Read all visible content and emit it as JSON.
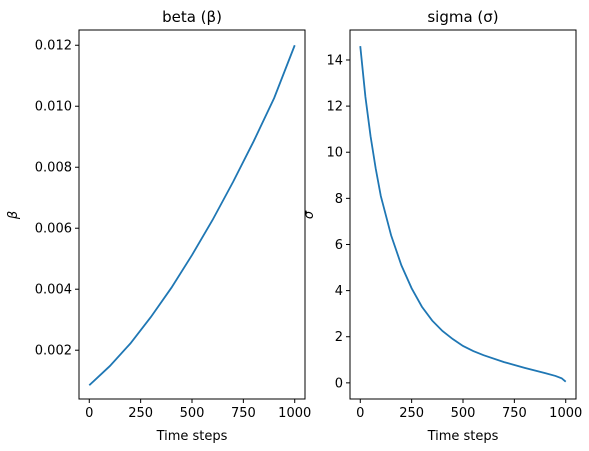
{
  "chart_data": [
    {
      "type": "line",
      "title": "beta (β)",
      "xlabel": "Time steps",
      "ylabel": "β",
      "xlim": [
        -50,
        1050
      ],
      "ylim": [
        0.0004,
        0.0125
      ],
      "xticks": [
        0,
        250,
        500,
        750,
        1000
      ],
      "xtick_labels": [
        "0",
        "250",
        "500",
        "750",
        "1000"
      ],
      "yticks": [
        0.002,
        0.004,
        0.006,
        0.008,
        0.01,
        0.012
      ],
      "ytick_labels": [
        "0.002",
        "0.004",
        "0.006",
        "0.008",
        "0.010",
        "0.012"
      ],
      "grid": false,
      "color": "#1f77b4",
      "series": [
        {
          "x": [
            0,
            100,
            200,
            300,
            400,
            500,
            600,
            700,
            800,
            900,
            1000
          ],
          "y": [
            0.00085,
            0.00148,
            0.00222,
            0.00309,
            0.00405,
            0.00512,
            0.00627,
            0.00752,
            0.00885,
            0.01027,
            0.012
          ]
        }
      ]
    },
    {
      "type": "line",
      "title": "sigma (σ)",
      "xlabel": "Time steps",
      "ylabel": "σ",
      "xlim": [
        -50,
        1050
      ],
      "ylim": [
        -0.7,
        15.3
      ],
      "xticks": [
        0,
        250,
        500,
        750,
        1000
      ],
      "xtick_labels": [
        "0",
        "250",
        "500",
        "750",
        "1000"
      ],
      "yticks": [
        0,
        2,
        4,
        6,
        8,
        10,
        12,
        14
      ],
      "ytick_labels": [
        "0",
        "2",
        "4",
        "6",
        "8",
        "10",
        "12",
        "14"
      ],
      "grid": false,
      "color": "#1f77b4",
      "series": [
        {
          "x": [
            0,
            25,
            50,
            75,
            100,
            150,
            200,
            250,
            300,
            350,
            400,
            450,
            500,
            550,
            600,
            700,
            800,
            900,
            950,
            980,
            1000
          ],
          "y": [
            14.6,
            12.4,
            10.7,
            9.3,
            8.1,
            6.4,
            5.1,
            4.1,
            3.3,
            2.7,
            2.25,
            1.9,
            1.6,
            1.38,
            1.2,
            0.9,
            0.65,
            0.42,
            0.3,
            0.2,
            0.05
          ]
        }
      ]
    }
  ]
}
